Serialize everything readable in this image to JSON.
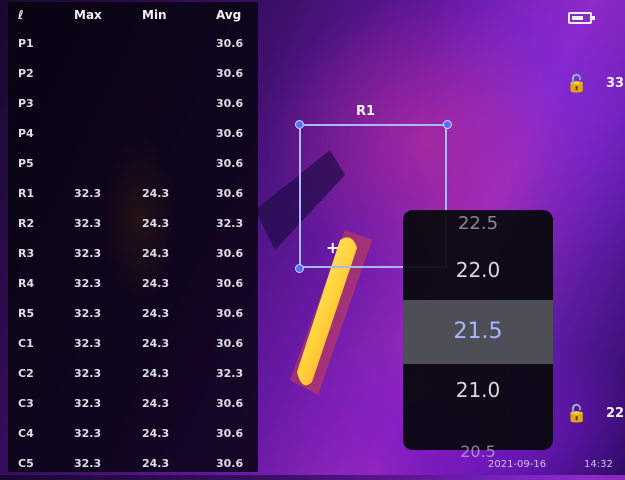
{
  "table": {
    "headers": [
      "ℓ",
      "Max",
      "Min",
      "Avg"
    ],
    "rows": [
      [
        "P1",
        "",
        "",
        "30.6"
      ],
      [
        "P2",
        "",
        "",
        "30.6"
      ],
      [
        "P3",
        "",
        "",
        "30.6"
      ],
      [
        "P4",
        "",
        "",
        "30.6"
      ],
      [
        "P5",
        "",
        "",
        "30.6"
      ],
      [
        "R1",
        "32.3",
        "24.3",
        "30.6"
      ],
      [
        "R2",
        "32.3",
        "24.3",
        "32.3"
      ],
      [
        "R3",
        "32.3",
        "24.3",
        "30.6"
      ],
      [
        "R4",
        "32.3",
        "24.3",
        "30.6"
      ],
      [
        "R5",
        "32.3",
        "24.3",
        "30.6"
      ],
      [
        "C1",
        "32.3",
        "24.3",
        "30.6"
      ],
      [
        "C2",
        "32.3",
        "24.3",
        "32.3"
      ],
      [
        "C3",
        "32.3",
        "24.3",
        "30.6"
      ],
      [
        "C4",
        "32.3",
        "24.3",
        "30.6"
      ],
      [
        "C5",
        "32.3",
        "24.3",
        "30.6"
      ]
    ]
  },
  "roi": {
    "label": "R1",
    "cursor": "+"
  },
  "picker": {
    "items": [
      "22.5",
      "22.0",
      "21.5",
      "21.0",
      "20.5"
    ],
    "selected_index": 2
  },
  "status": {
    "battery_level": 0.7,
    "top_value": "33",
    "bottom_value": "22",
    "date": "2021-09-16",
    "time": "14:32"
  },
  "icons": {
    "battery": "battery-icon",
    "lock_top": "lock-icon",
    "lock_bottom": "lock-icon"
  },
  "colors": {
    "roi_box": "#aab8ff",
    "hotspot_core": "#fff7a0",
    "hotspot_edge": "#ff7a1a",
    "picker_selected": "#4d4e56",
    "picker_selected_text": "#a8b8ff"
  }
}
